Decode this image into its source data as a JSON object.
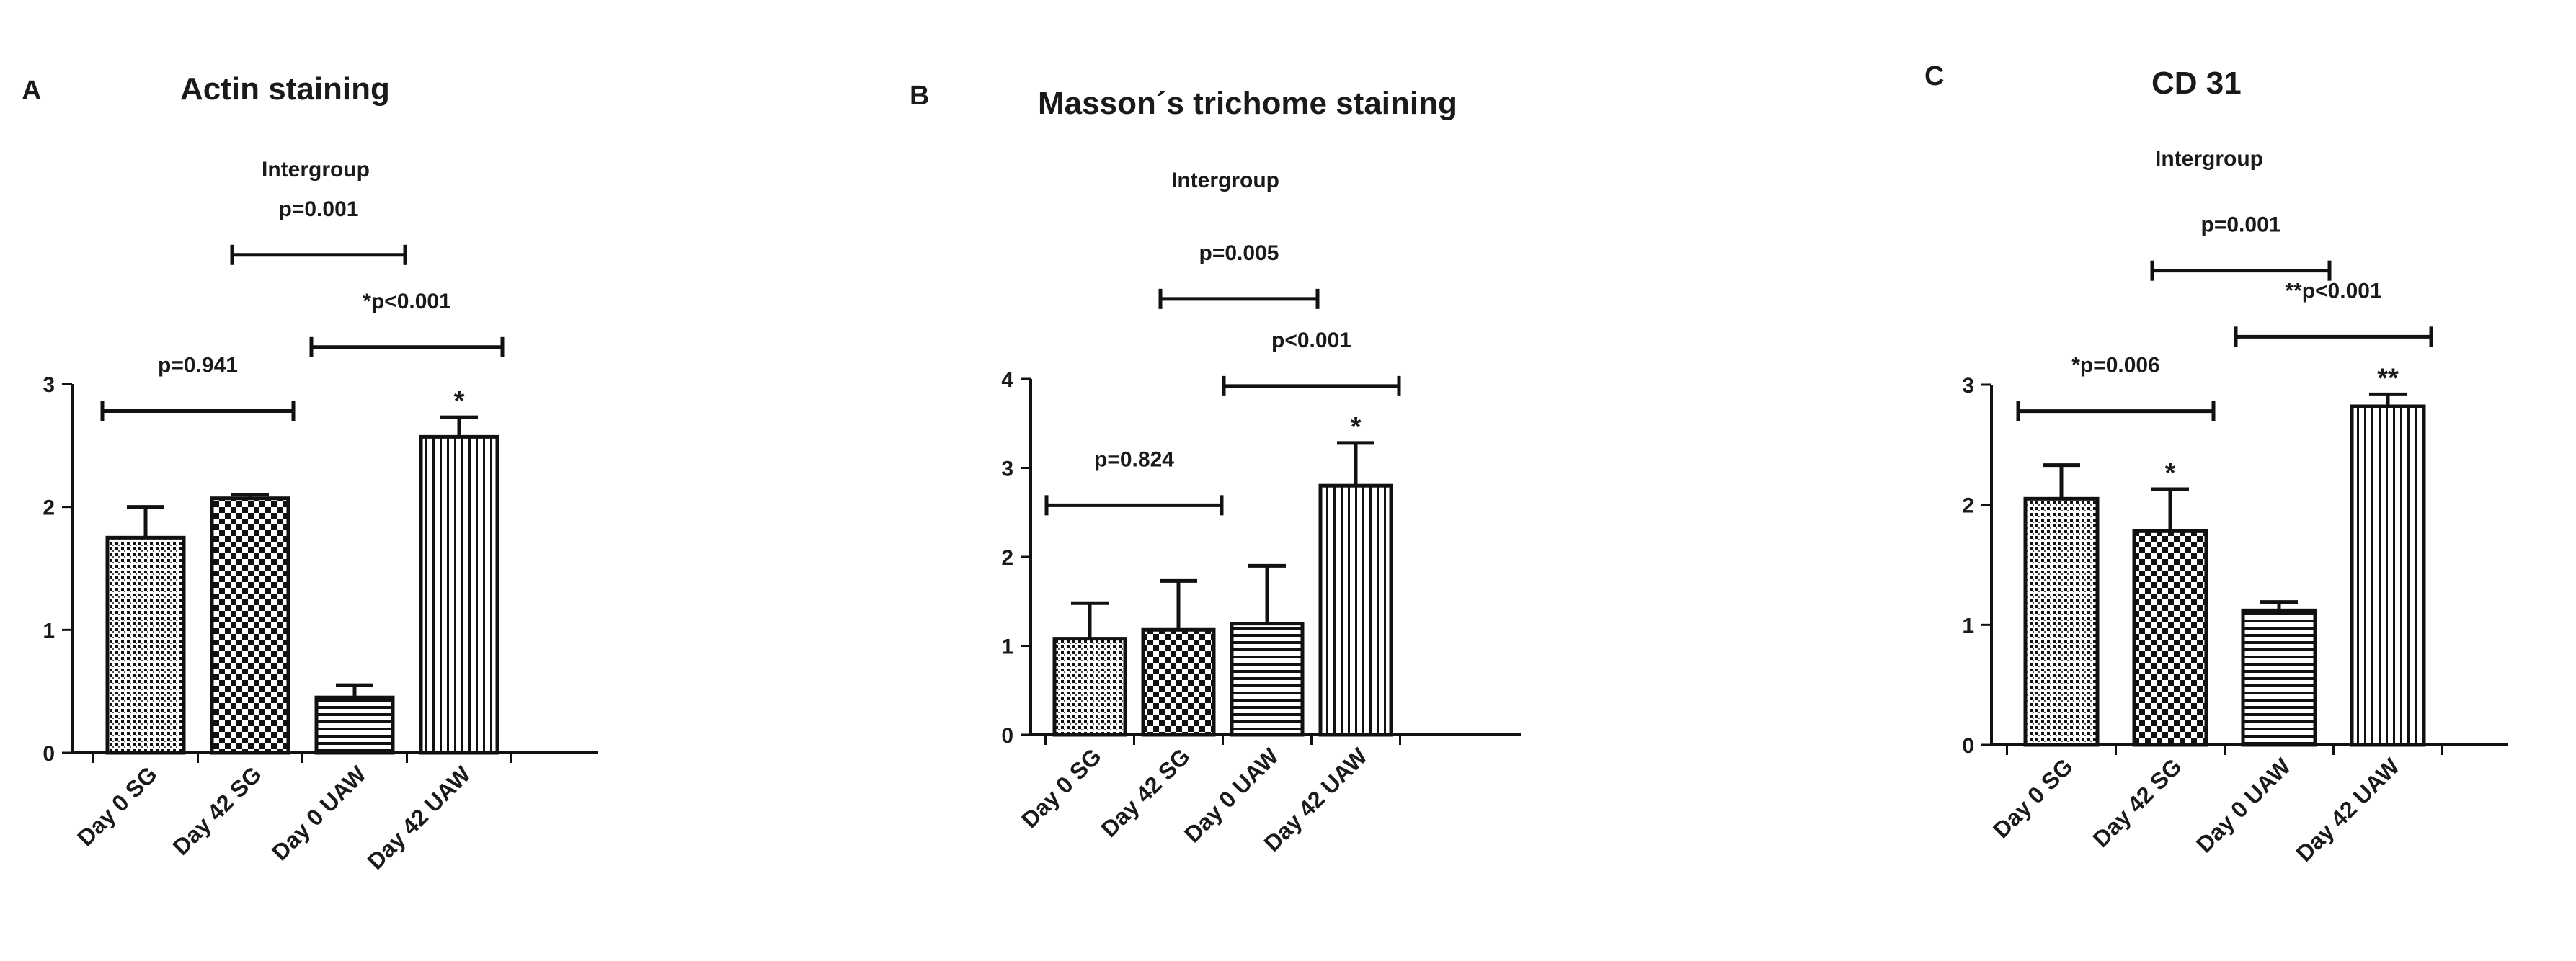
{
  "chart_data": [
    {
      "type": "bar",
      "panel": "A",
      "title": "Actin staining",
      "group_label": "Intergroup",
      "categories": [
        "Day 0 SG",
        "Day 42 SG",
        "Day 0 UAW",
        "Day 42  UAW"
      ],
      "values": [
        1.75,
        2.07,
        0.45,
        2.57
      ],
      "errors": [
        0.25,
        0.03,
        0.1,
        0.16
      ],
      "patterns": [
        "dots",
        "checker",
        "hlines",
        "vlines"
      ],
      "bar_stars": [
        "",
        "",
        "",
        "*"
      ],
      "ylim": [
        0,
        3
      ],
      "yticks": [
        "0",
        "1",
        "2",
        "3"
      ],
      "brackets": [
        {
          "from": 0,
          "to": 1,
          "y": 2.78,
          "label": "p=0.941"
        },
        {
          "from": 2,
          "to": 3,
          "y": 3.3,
          "label": "*p<0.001"
        },
        {
          "from": 1,
          "to": 2,
          "y": 4.05,
          "label": "p=0.001"
        }
      ]
    },
    {
      "type": "bar",
      "panel": "B",
      "title": "Masson´s trichome staining",
      "group_label": "Intergroup",
      "categories": [
        "Day 0 SG",
        "Day 42 SG",
        "Day 0 UAW",
        "Day 42  UAW"
      ],
      "values": [
        1.08,
        1.18,
        1.25,
        2.8
      ],
      "errors": [
        0.4,
        0.55,
        0.65,
        0.48
      ],
      "patterns": [
        "dots",
        "checker",
        "hlines",
        "vlines"
      ],
      "bar_stars": [
        "",
        "",
        "",
        "*"
      ],
      "ylim": [
        0,
        4
      ],
      "yticks": [
        "0",
        "1",
        "2",
        "3",
        "4"
      ],
      "brackets": [
        {
          "from": 0,
          "to": 1,
          "y": 2.58,
          "label": "p=0.824"
        },
        {
          "from": 2,
          "to": 3,
          "y": 3.92,
          "label": "p<0.001"
        },
        {
          "from": 1,
          "to": 2,
          "y": 4.9,
          "label": "p=0.005"
        }
      ]
    },
    {
      "type": "bar",
      "panel": "C",
      "title": "CD 31",
      "group_label": "Intergroup",
      "categories": [
        "Day 0 SG",
        "Day 42 SG",
        "Day 0 UAW",
        "Day 42  UAW"
      ],
      "values": [
        2.05,
        1.78,
        1.12,
        2.82
      ],
      "errors": [
        0.28,
        0.35,
        0.07,
        0.1
      ],
      "patterns": [
        "dots",
        "checker",
        "hlines",
        "vlines"
      ],
      "bar_stars": [
        "",
        "*",
        "",
        "**"
      ],
      "ylim": [
        0,
        3
      ],
      "yticks": [
        "0",
        "1",
        "2",
        "3"
      ],
      "brackets": [
        {
          "from": 0,
          "to": 1,
          "y": 2.78,
          "label": "*p=0.006"
        },
        {
          "from": 2,
          "to": 3,
          "y": 3.4,
          "label": "**p<0.001"
        },
        {
          "from": 1,
          "to": 2,
          "y": 3.95,
          "label": "p=0.001"
        }
      ]
    }
  ]
}
